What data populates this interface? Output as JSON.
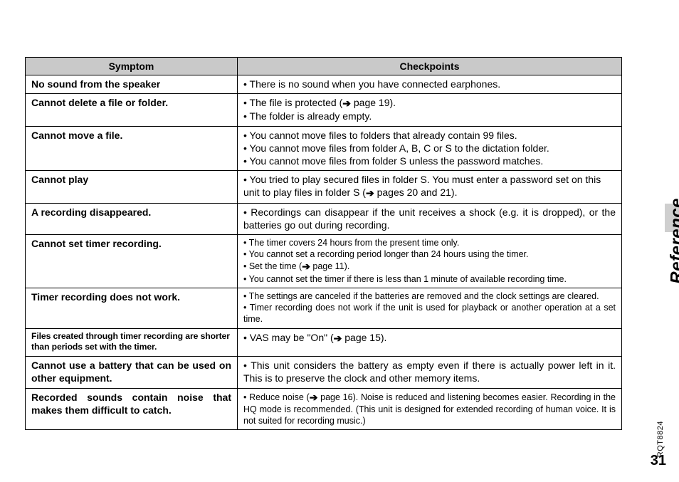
{
  "header": {
    "symptom": "Symptom",
    "checkpoints": "Checkpoints"
  },
  "rows": [
    {
      "symptom": "No sound from the speaker",
      "symClass": "",
      "checkpoints": "• There is no sound when you have connected earphones.",
      "chkClass": ""
    },
    {
      "symptom": "Cannot delete a file or folder.",
      "symClass": "",
      "checkpoints": "• The file is protected (➜ page 19).\n• The folder is already empty.",
      "chkClass": ""
    },
    {
      "symptom": "Cannot move a file.",
      "symClass": "",
      "checkpoints": "• You cannot move files to folders that already contain 99 files.\n• You cannot move files from folder A, B, C or S to the dictation folder.\n• You cannot move files from folder S unless the password matches.",
      "chkClass": ""
    },
    {
      "symptom": "Cannot play",
      "symClass": "",
      "checkpoints": "• You tried to play secured files in folder S. You must enter a password set on this unit to play files in folder S (➜ pages 20 and 21).",
      "chkClass": ""
    },
    {
      "symptom": "A recording disappeared.",
      "symClass": "",
      "checkpoints": "• Recordings can disappear if the unit receives a shock (e.g. it is dropped), or the batteries go out during recording.",
      "chkClass": "just"
    },
    {
      "symptom": "Cannot set timer recording.",
      "symClass": "",
      "checkpoints": "• The timer covers 24 hours from the present time only.\n• You cannot set a recording period longer than 24 hours using the timer.\n• Set the time (➜ page 11).\n• You cannot set the timer if there is less than 1 minute of available recording time.",
      "chkClass": "sm"
    },
    {
      "symptom": "Timer recording does not work.",
      "symClass": "",
      "checkpoints": "• The settings are canceled if the batteries are removed and the clock settings are cleared.\n• Timer recording does not work if the unit is used for playback or another operation at a set time.",
      "chkClass": "sm just"
    },
    {
      "symptom": "Files created through timer recording are shorter than periods set with the timer.",
      "symClass": "cond",
      "checkpoints": "• VAS may be \"On\" (➜ page 15).",
      "chkClass": ""
    },
    {
      "symptom": "Cannot use a battery that can be used on other equipment.",
      "symClass": "just",
      "checkpoints": "• This unit considers the battery as empty even if there is actually power left in it. This is to preserve the clock and other memory items.",
      "chkClass": "just"
    },
    {
      "symptom": "Recorded sounds contain noise that makes them difficult to catch.",
      "symClass": "just",
      "checkpoints": "• Reduce noise (➜ page 16). Noise is reduced and listening becomes easier. Recording in the HQ mode is recommended. (This unit is designed for extended recording of human voice. It is not suited for recording music.)",
      "chkClass": "sm just"
    }
  ],
  "side": {
    "section": "Reference",
    "docid": "RQT8824",
    "page": "31"
  }
}
